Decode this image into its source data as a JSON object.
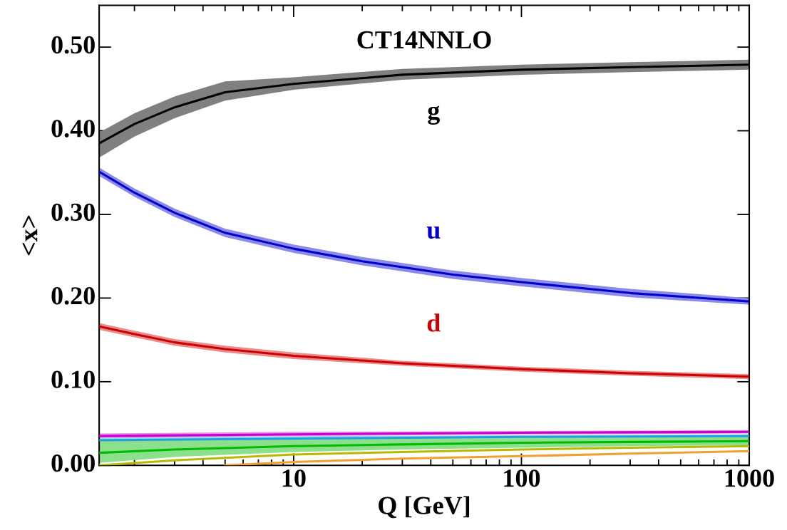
{
  "chart_data": {
    "type": "line",
    "title": "CT14NNLO",
    "xlabel": "Q [GeV]",
    "ylabel": "<x>",
    "log": "x",
    "grid": false,
    "legend": false,
    "marker": "none",
    "line_style": "solid",
    "xlim": [
      1.4,
      1000
    ],
    "xticks": [
      10,
      100,
      1000
    ],
    "ylim": [
      0,
      0.55
    ],
    "yticks": [
      {
        "value": 0,
        "label": "0.00"
      },
      {
        "value": 0.1,
        "label": "0.10"
      },
      {
        "value": 0.2,
        "label": "0.20"
      },
      {
        "value": 0.3,
        "label": "0.30"
      },
      {
        "value": 0.4,
        "label": "0.40"
      },
      {
        "value": 0.5,
        "label": "0.50"
      }
    ],
    "series": [
      {
        "name": "g",
        "color": "#000000",
        "x": [
          1.4,
          2,
          3,
          5,
          10,
          30,
          100,
          300,
          1000
        ],
        "values": [
          0.385,
          0.408,
          0.428,
          0.446,
          0.456,
          0.467,
          0.473,
          0.476,
          0.479
        ],
        "lower": [
          0.368,
          0.393,
          0.415,
          0.436,
          0.449,
          0.461,
          0.467,
          0.47,
          0.473
        ],
        "upper": [
          0.398,
          0.421,
          0.441,
          0.459,
          0.464,
          0.474,
          0.479,
          0.482,
          0.485
        ]
      },
      {
        "name": "u",
        "color": "#0000cc",
        "x": [
          1.4,
          2,
          3,
          5,
          10,
          20,
          50,
          100,
          300,
          1000
        ],
        "values": [
          0.351,
          0.326,
          0.302,
          0.278,
          0.259,
          0.244,
          0.228,
          0.219,
          0.206,
          0.196
        ],
        "lower": [
          0.346,
          0.321,
          0.297,
          0.273,
          0.254,
          0.239,
          0.223,
          0.214,
          0.201,
          0.192
        ],
        "upper": [
          0.356,
          0.331,
          0.307,
          0.283,
          0.264,
          0.249,
          0.233,
          0.224,
          0.211,
          0.2
        ]
      },
      {
        "name": "d",
        "color": "#cc0000",
        "x": [
          1.4,
          2,
          3,
          5,
          10,
          30,
          100,
          300,
          1000
        ],
        "values": [
          0.166,
          0.157,
          0.147,
          0.139,
          0.131,
          0.122,
          0.115,
          0.11,
          0.106
        ],
        "lower": [
          0.162,
          0.153,
          0.143,
          0.135,
          0.127,
          0.119,
          0.112,
          0.107,
          0.103
        ],
        "upper": [
          0.17,
          0.161,
          0.151,
          0.143,
          0.135,
          0.125,
          0.118,
          0.113,
          0.109
        ]
      },
      {
        "color": "#cc00cc",
        "x": [
          1.4,
          10,
          100,
          1000
        ],
        "values": [
          0.035,
          0.037,
          0.039,
          0.04
        ],
        "lower": [
          0.033,
          0.035,
          0.037,
          0.038
        ],
        "upper": [
          0.038,
          0.04,
          0.041,
          0.042
        ]
      },
      {
        "color": "#1f9fe0",
        "x": [
          1.4,
          10,
          100,
          1000
        ],
        "values": [
          0.03,
          0.032,
          0.034,
          0.035
        ],
        "lower": [
          0.027,
          0.03,
          0.032,
          0.033
        ],
        "upper": [
          0.033,
          0.035,
          0.036,
          0.037
        ]
      },
      {
        "color": "#00bb00",
        "x": [
          1.4,
          3,
          10,
          30,
          100,
          300,
          1000
        ],
        "values": [
          0.015,
          0.019,
          0.023,
          0.025,
          0.027,
          0.028,
          0.029
        ],
        "lower": [
          0.003,
          0.01,
          0.016,
          0.019,
          0.021,
          0.023,
          0.024
        ],
        "upper": [
          0.032,
          0.03,
          0.031,
          0.032,
          0.033,
          0.034,
          0.035
        ]
      },
      {
        "color": "#b8b800",
        "x": [
          1.4,
          3,
          10,
          30,
          100,
          300,
          1000
        ],
        "values": [
          0.0,
          0.006,
          0.013,
          0.016,
          0.019,
          0.021,
          0.023
        ]
      },
      {
        "color": "#f0a030",
        "x": [
          5,
          10,
          30,
          100,
          300,
          1000
        ],
        "values": [
          0.0,
          0.004,
          0.008,
          0.011,
          0.014,
          0.017
        ]
      }
    ]
  }
}
